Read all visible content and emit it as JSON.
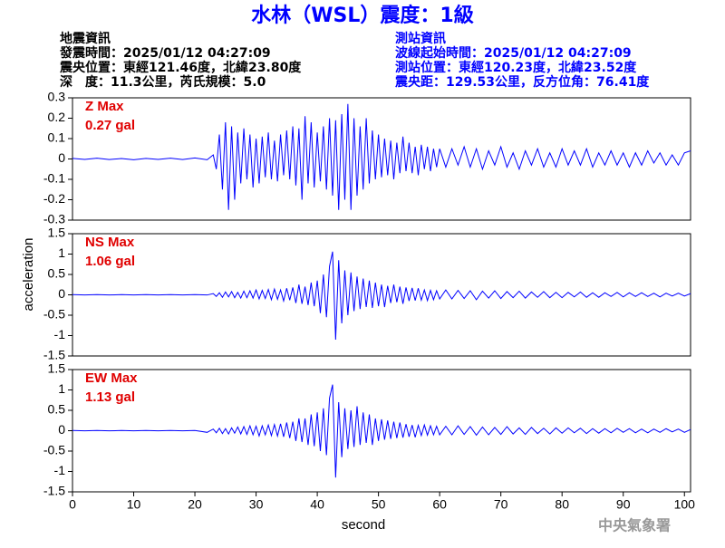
{
  "header": {
    "title": "水林（WSL）震度：1級",
    "left": [
      "地震資訊",
      "發震時間：2025/01/12 04:27:09",
      "震央位置：東經121.46度，北緯23.80度",
      "深　度：11.3公里，芮氏規模：5.0"
    ],
    "right": [
      "測站資訊",
      "波線起始時間：2025/01/12 04:27:09",
      "測站位置：東經120.23度，北緯23.52度",
      "震央距：129.53公里，反方位角：76.41度"
    ]
  },
  "footer": "中央氣象署",
  "chart_data": [
    {
      "type": "line",
      "annotations": [
        "Z Max",
        "0.27 gal"
      ],
      "color": "#0000ff",
      "xlim": [
        0,
        101
      ],
      "ylim": [
        -0.3,
        0.3
      ],
      "yticks": [
        -0.3,
        -0.2,
        -0.1,
        0,
        0.1,
        0.2,
        0.3
      ],
      "x": [
        0,
        2,
        4,
        6,
        8,
        10,
        12,
        14,
        16,
        18,
        20,
        22,
        23,
        23.5,
        24,
        24.5,
        25,
        25.5,
        26,
        26.5,
        27,
        27.5,
        28,
        28.5,
        29,
        29.5,
        30,
        30.5,
        31,
        31.5,
        32,
        32.5,
        33,
        33.5,
        34,
        34.5,
        35,
        35.5,
        36,
        36.5,
        37,
        37.5,
        38,
        38.5,
        39,
        39.5,
        40,
        40.5,
        41,
        41.5,
        42,
        42.5,
        43,
        43.5,
        44,
        44.5,
        45,
        45.5,
        46,
        46.5,
        47,
        47.5,
        48,
        48.5,
        49,
        49.5,
        50,
        50.5,
        51,
        51.5,
        52,
        52.5,
        53,
        53.5,
        54,
        54.5,
        55,
        55.5,
        56,
        56.5,
        57,
        57.5,
        58,
        58.5,
        59,
        59.5,
        60,
        61,
        62,
        63,
        64,
        65,
        66,
        67,
        68,
        69,
        70,
        71,
        72,
        73,
        74,
        75,
        76,
        77,
        78,
        79,
        80,
        81,
        82,
        83,
        84,
        85,
        86,
        87,
        88,
        89,
        90,
        91,
        92,
        93,
        94,
        95,
        96,
        97,
        98,
        99,
        100,
        101
      ],
      "values": [
        0.003,
        -0.002,
        0.004,
        -0.003,
        0.002,
        -0.004,
        0.003,
        -0.002,
        0.004,
        -0.003,
        0.005,
        -0.004,
        0.02,
        -0.05,
        0.12,
        -0.15,
        0.18,
        -0.25,
        0.16,
        -0.2,
        0.13,
        -0.12,
        0.15,
        -0.1,
        0.12,
        -0.14,
        0.1,
        -0.12,
        0.11,
        -0.09,
        0.13,
        -0.1,
        0.09,
        -0.11,
        0.12,
        -0.08,
        0.14,
        -0.1,
        0.16,
        -0.13,
        0.15,
        -0.2,
        0.21,
        -0.12,
        0.18,
        -0.14,
        0.13,
        -0.11,
        0.16,
        -0.15,
        0.2,
        -0.18,
        0.19,
        -0.25,
        0.22,
        -0.2,
        0.27,
        -0.25,
        0.2,
        -0.18,
        0.16,
        -0.15,
        0.2,
        -0.12,
        0.14,
        -0.1,
        0.12,
        -0.09,
        0.1,
        -0.08,
        0.09,
        -0.1,
        0.08,
        -0.07,
        0.11,
        -0.06,
        0.08,
        -0.07,
        0.06,
        -0.08,
        0.07,
        -0.05,
        0.06,
        -0.06,
        0.05,
        -0.04,
        0.05,
        -0.04,
        0.05,
        -0.03,
        0.06,
        -0.04,
        0.05,
        -0.05,
        0.04,
        -0.03,
        0.06,
        -0.04,
        0.03,
        -0.05,
        0.04,
        -0.03,
        0.05,
        -0.04,
        0.03,
        -0.04,
        0.05,
        -0.03,
        0.04,
        -0.03,
        0.05,
        -0.04,
        0.03,
        -0.03,
        0.04,
        -0.03,
        0.03,
        -0.04,
        0.03,
        -0.03,
        0.04,
        -0.02,
        0.03,
        -0.03,
        0.02,
        -0.03,
        0.03,
        0.04
      ]
    },
    {
      "type": "line",
      "annotations": [
        "NS Max",
        "1.06 gal"
      ],
      "color": "#0000ff",
      "ylabel": "acceleration",
      "xlim": [
        0,
        101
      ],
      "ylim": [
        -1.5,
        1.5
      ],
      "yticks": [
        -1.5,
        -1,
        -0.5,
        0,
        0.5,
        1,
        1.5
      ],
      "x": [
        0,
        2,
        4,
        6,
        8,
        10,
        12,
        14,
        16,
        18,
        20,
        22,
        23,
        23.5,
        24,
        24.5,
        25,
        25.5,
        26,
        26.5,
        27,
        27.5,
        28,
        28.5,
        29,
        29.5,
        30,
        30.5,
        31,
        31.5,
        32,
        32.5,
        33,
        33.5,
        34,
        34.5,
        35,
        35.5,
        36,
        36.5,
        37,
        37.5,
        38,
        38.5,
        39,
        39.5,
        40,
        40.5,
        41,
        41.5,
        42,
        42.5,
        43,
        43.5,
        44,
        44.5,
        45,
        45.5,
        46,
        46.5,
        47,
        47.5,
        48,
        48.5,
        49,
        49.5,
        50,
        50.5,
        51,
        51.5,
        52,
        52.5,
        53,
        53.5,
        54,
        54.5,
        55,
        55.5,
        56,
        56.5,
        57,
        57.5,
        58,
        58.5,
        59,
        59.5,
        60,
        61,
        62,
        63,
        64,
        65,
        66,
        67,
        68,
        69,
        70,
        71,
        72,
        73,
        74,
        75,
        76,
        77,
        78,
        79,
        80,
        81,
        82,
        83,
        84,
        85,
        86,
        87,
        88,
        89,
        90,
        91,
        92,
        93,
        94,
        95,
        96,
        97,
        98,
        99,
        100,
        101
      ],
      "values": [
        0.005,
        -0.004,
        0.005,
        -0.004,
        0.005,
        -0.004,
        0.005,
        -0.004,
        0.005,
        -0.004,
        0.005,
        -0.004,
        0.03,
        -0.04,
        0.05,
        -0.06,
        0.07,
        -0.05,
        0.08,
        -0.07,
        0.06,
        -0.08,
        0.09,
        -0.07,
        0.1,
        -0.08,
        0.12,
        -0.1,
        0.11,
        -0.09,
        0.13,
        -0.12,
        0.14,
        -0.11,
        0.12,
        -0.15,
        0.16,
        -0.13,
        0.18,
        -0.2,
        0.25,
        -0.22,
        0.2,
        -0.25,
        0.3,
        -0.28,
        0.35,
        -0.45,
        0.5,
        -0.55,
        0.7,
        1.06,
        -1.1,
        0.85,
        -0.7,
        0.6,
        -0.5,
        0.55,
        -0.4,
        0.45,
        -0.35,
        0.4,
        -0.3,
        0.35,
        -0.32,
        0.3,
        -0.28,
        0.25,
        -0.3,
        0.22,
        -0.2,
        0.25,
        -0.18,
        0.2,
        -0.22,
        0.18,
        -0.15,
        0.17,
        -0.14,
        0.16,
        -0.13,
        0.12,
        -0.14,
        0.11,
        -0.12,
        0.1,
        -0.1,
        0.12,
        -0.1,
        0.11,
        -0.09,
        0.1,
        -0.12,
        0.09,
        -0.08,
        0.1,
        -0.09,
        0.08,
        -0.07,
        0.09,
        -0.08,
        0.07,
        -0.06,
        0.08,
        -0.07,
        0.06,
        -0.07,
        0.06,
        -0.05,
        0.07,
        -0.06,
        0.05,
        -0.06,
        0.05,
        -0.04,
        0.06,
        -0.05,
        0.05,
        -0.04,
        0.05,
        -0.04,
        0.04,
        -0.05,
        0.04,
        -0.03,
        0.04,
        -0.03,
        0.03
      ]
    },
    {
      "type": "line",
      "annotations": [
        "EW Max",
        "1.13 gal"
      ],
      "color": "#0000ff",
      "xlabel": "second",
      "xlim": [
        0,
        101
      ],
      "xticks": [
        0,
        10,
        20,
        30,
        40,
        50,
        60,
        70,
        80,
        90,
        100
      ],
      "ylim": [
        -1.5,
        1.5
      ],
      "yticks": [
        -1.5,
        -1,
        -0.5,
        0,
        0.5,
        1,
        1.5
      ],
      "x": [
        0,
        2,
        4,
        6,
        8,
        10,
        12,
        14,
        16,
        18,
        20,
        22,
        23,
        23.5,
        24,
        24.5,
        25,
        25.5,
        26,
        26.5,
        27,
        27.5,
        28,
        28.5,
        29,
        29.5,
        30,
        30.5,
        31,
        31.5,
        32,
        32.5,
        33,
        33.5,
        34,
        34.5,
        35,
        35.5,
        36,
        36.5,
        37,
        37.5,
        38,
        38.5,
        39,
        39.5,
        40,
        40.5,
        41,
        41.5,
        42,
        42.5,
        43,
        43.5,
        44,
        44.5,
        45,
        45.5,
        46,
        46.5,
        47,
        47.5,
        48,
        48.5,
        49,
        49.5,
        50,
        50.5,
        51,
        51.5,
        52,
        52.5,
        53,
        53.5,
        54,
        54.5,
        55,
        55.5,
        56,
        56.5,
        57,
        57.5,
        58,
        58.5,
        59,
        59.5,
        60,
        61,
        62,
        63,
        64,
        65,
        66,
        67,
        68,
        69,
        70,
        71,
        72,
        73,
        74,
        75,
        76,
        77,
        78,
        79,
        80,
        81,
        82,
        83,
        84,
        85,
        86,
        87,
        88,
        89,
        90,
        91,
        92,
        93,
        94,
        95,
        96,
        97,
        98,
        99,
        100,
        101
      ],
      "values": [
        0.005,
        -0.004,
        0.005,
        -0.004,
        0.005,
        -0.004,
        0.005,
        -0.004,
        0.005,
        -0.004,
        0.005,
        -0.04,
        0.04,
        -0.05,
        0.06,
        -0.07,
        0.05,
        -0.08,
        0.07,
        -0.06,
        0.09,
        -0.08,
        0.1,
        -0.09,
        0.12,
        -0.1,
        0.11,
        -0.13,
        0.12,
        -0.1,
        0.14,
        -0.12,
        0.15,
        -0.13,
        0.17,
        -0.15,
        0.2,
        -0.18,
        0.22,
        -0.25,
        0.3,
        -0.28,
        0.3,
        -0.35,
        0.4,
        -0.38,
        0.45,
        -0.5,
        0.55,
        -0.6,
        0.8,
        1.13,
        -1.15,
        0.7,
        -0.65,
        0.55,
        -0.45,
        0.5,
        -0.4,
        0.6,
        -0.35,
        0.45,
        -0.3,
        0.4,
        -0.35,
        0.3,
        -0.25,
        0.28,
        -0.22,
        0.25,
        -0.2,
        0.22,
        -0.18,
        0.2,
        -0.17,
        0.16,
        -0.15,
        0.14,
        -0.16,
        0.13,
        -0.12,
        0.14,
        -0.11,
        0.12,
        -0.1,
        0.11,
        -0.1,
        0.11,
        -0.1,
        0.12,
        -0.09,
        0.1,
        -0.11,
        0.09,
        -0.1,
        0.08,
        -0.09,
        0.1,
        -0.08,
        0.07,
        -0.09,
        0.08,
        -0.07,
        0.06,
        -0.08,
        0.07,
        -0.06,
        0.07,
        -0.05,
        0.06,
        -0.07,
        0.05,
        -0.06,
        0.05,
        -0.05,
        0.06,
        -0.04,
        0.05,
        -0.05,
        0.04,
        -0.05,
        0.04,
        -0.04,
        0.05,
        -0.03,
        0.04,
        -0.04,
        0.03
      ]
    }
  ]
}
